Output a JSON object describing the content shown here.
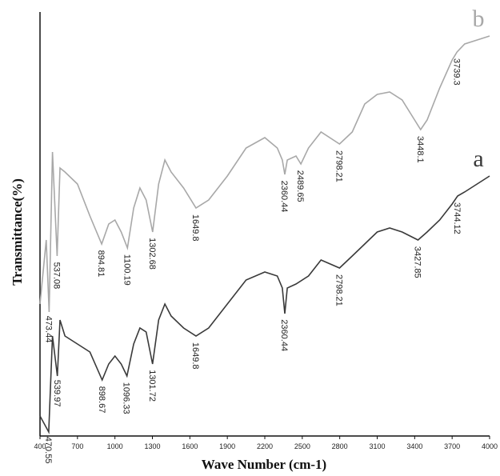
{
  "chart_data": {
    "type": "line",
    "x_label": "Wave Number (cm-1)",
    "y_label": "Transmittance(%)",
    "xlim": [
      400,
      4000
    ],
    "xticks": [
      400,
      700,
      1000,
      1300,
      1600,
      1900,
      2200,
      2500,
      2800,
      3100,
      3400,
      3700,
      4000
    ],
    "ylim": [
      0,
      530
    ],
    "series": [
      {
        "name": "a",
        "color": "#3a3a3a",
        "x": [
          400,
          470,
          500,
          539,
          560,
          600,
          700,
          800,
          898,
          950,
          1000,
          1050,
          1096,
          1150,
          1200,
          1250,
          1301,
          1350,
          1400,
          1450,
          1550,
          1649,
          1750,
          1900,
          2050,
          2200,
          2300,
          2340,
          2360,
          2380,
          2450,
          2550,
          2650,
          2798,
          2900,
          3000,
          3100,
          3200,
          3300,
          3427,
          3500,
          3600,
          3700,
          3744,
          3800,
          3900,
          4000
        ],
        "values": [
          25,
          5,
          125,
          75,
          145,
          125,
          115,
          105,
          70,
          90,
          100,
          90,
          75,
          115,
          135,
          130,
          90,
          145,
          165,
          150,
          135,
          125,
          135,
          165,
          195,
          205,
          200,
          185,
          153,
          185,
          190,
          200,
          220,
          210,
          225,
          240,
          255,
          260,
          255,
          245,
          255,
          270,
          290,
          300,
          305,
          315,
          325
        ],
        "peaks": [
          470.55,
          539.97,
          898.67,
          1096.33,
          1301.72,
          1649.8,
          2360.44,
          2798.21,
          3427.85,
          3744.12
        ]
      },
      {
        "name": "b",
        "color": "#a8a8a8",
        "x": [
          400,
          450,
          473,
          500,
          537,
          560,
          600,
          700,
          800,
          894,
          950,
          1000,
          1050,
          1100,
          1150,
          1200,
          1250,
          1302,
          1350,
          1400,
          1450,
          1550,
          1649,
          1750,
          1900,
          2050,
          2200,
          2300,
          2340,
          2360,
          2380,
          2450,
          2489,
          2550,
          2650,
          2798,
          2900,
          3000,
          3100,
          3200,
          3300,
          3400,
          3448,
          3500,
          3600,
          3700,
          3739,
          3800,
          3900,
          4000
        ],
        "values": [
          165,
          245,
          155,
          355,
          225,
          335,
          330,
          315,
          275,
          240,
          265,
          270,
          255,
          235,
          285,
          310,
          295,
          255,
          315,
          345,
          330,
          310,
          285,
          295,
          325,
          360,
          373,
          360,
          345,
          327,
          345,
          350,
          340,
          360,
          380,
          365,
          380,
          415,
          427,
          430,
          420,
          395,
          383,
          395,
          435,
          470,
          480,
          490,
          495,
          500
        ],
        "peaks": [
          473.44,
          537.08,
          894.81,
          1100.19,
          1302.68,
          1649.8,
          2360.44,
          2489.65,
          2798.21,
          3448.1,
          3739.3
        ]
      }
    ]
  }
}
